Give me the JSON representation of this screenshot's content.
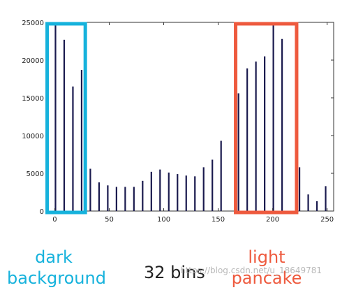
{
  "chart_data": {
    "type": "bar",
    "title": "",
    "xlabel": "",
    "ylabel": "",
    "xlim": [
      -8,
      256
    ],
    "ylim": [
      0,
      25000
    ],
    "xticks": [
      0,
      50,
      100,
      150,
      200,
      250
    ],
    "yticks": [
      0,
      5000,
      10000,
      15000,
      20000,
      25000
    ],
    "bin_width": 8,
    "series": [
      {
        "bin_starts": [
          0,
          8,
          16,
          24,
          32,
          40,
          48,
          56,
          64,
          72,
          80,
          88,
          96,
          104,
          112,
          120,
          128,
          136,
          144,
          152,
          160,
          168,
          176,
          184,
          192,
          200,
          208,
          216,
          224,
          232,
          240,
          248
        ],
        "values": [
          24800,
          22700,
          16500,
          18700,
          5600,
          3800,
          3400,
          3200,
          3200,
          3200,
          4000,
          5200,
          5500,
          5100,
          4900,
          4700,
          4600,
          5800,
          6800,
          9300,
          0,
          15600,
          18900,
          19800,
          20500,
          24800,
          22800,
          0,
          5800,
          2200,
          1300,
          3300
        ]
      }
    ],
    "colors": {
      "bar": "#1a1a4e",
      "left_box": "#16b2dc",
      "right_box": "#ee5a3e"
    },
    "annotations": {
      "left_box_range": [
        -7,
        28
      ],
      "right_box_range": [
        166,
        222
      ]
    }
  },
  "captions": {
    "left": "dark background",
    "center": "32 bins",
    "right": "light pancake"
  },
  "watermark": "https://blog.csdn.net/u_18649781"
}
